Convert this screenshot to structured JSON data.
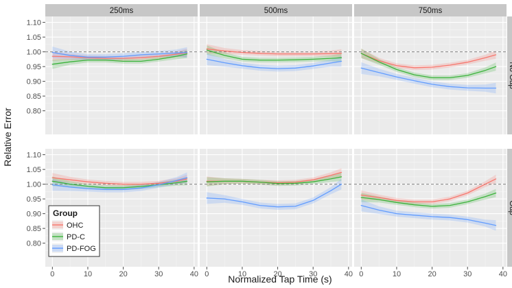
{
  "chart_data": {
    "type": "line",
    "xlabel": "Normalized Tap Time (s)",
    "ylabel": "Relative Error",
    "xlim": [
      -2,
      41
    ],
    "ylim": [
      0.72,
      1.12
    ],
    "x_ticks": [
      0,
      10,
      20,
      30,
      40
    ],
    "y_ticks": [
      0.8,
      0.85,
      0.9,
      0.95,
      1.0,
      1.05,
      1.1
    ],
    "y_tick_labels": [
      "0.80",
      "0.85",
      "0.90",
      "0.95",
      "1.00",
      "1.05",
      "1.10"
    ],
    "reference_line": 1.0,
    "columns": [
      "250ms",
      "500ms",
      "750ms"
    ],
    "rows": [
      "No Gap",
      "Gap"
    ],
    "legend": {
      "title": "Group",
      "position": "bottom-left",
      "entries": [
        {
          "name": "OHC",
          "color": "#f8766d"
        },
        {
          "name": "PD-C",
          "color": "#3bb33b"
        },
        {
          "name": "PD-FOG",
          "color": "#619cff"
        }
      ]
    },
    "x": [
      0,
      5,
      10,
      15,
      20,
      25,
      30,
      35,
      38
    ],
    "panels": [
      {
        "row": "No Gap",
        "column": "250ms",
        "series": [
          {
            "name": "OHC",
            "values": [
              0.985,
              0.983,
              0.98,
              0.978,
              0.978,
              0.98,
              0.985,
              0.992,
              0.997
            ],
            "ci": [
              0.016,
              0.01,
              0.008,
              0.008,
              0.008,
              0.008,
              0.008,
              0.01,
              0.014
            ]
          },
          {
            "name": "PD-C",
            "values": [
              0.958,
              0.966,
              0.972,
              0.972,
              0.968,
              0.968,
              0.975,
              0.985,
              0.993
            ],
            "ci": [
              0.016,
              0.01,
              0.008,
              0.008,
              0.008,
              0.008,
              0.008,
              0.01,
              0.014
            ]
          },
          {
            "name": "PD-FOG",
            "values": [
              0.998,
              0.988,
              0.982,
              0.982,
              0.985,
              0.99,
              0.993,
              0.996,
              0.998
            ],
            "ci": [
              0.02,
              0.013,
              0.01,
              0.01,
              0.01,
              0.01,
              0.01,
              0.012,
              0.018
            ]
          }
        ]
      },
      {
        "row": "No Gap",
        "column": "500ms",
        "series": [
          {
            "name": "OHC",
            "values": [
              1.01,
              1.003,
              0.998,
              0.995,
              0.993,
              0.993,
              0.993,
              0.994,
              0.995
            ],
            "ci": [
              0.016,
              0.01,
              0.008,
              0.008,
              0.008,
              0.008,
              0.008,
              0.01,
              0.014
            ]
          },
          {
            "name": "PD-C",
            "values": [
              1.006,
              0.988,
              0.975,
              0.972,
              0.972,
              0.973,
              0.975,
              0.978,
              0.98
            ],
            "ci": [
              0.016,
              0.01,
              0.008,
              0.008,
              0.008,
              0.008,
              0.008,
              0.01,
              0.014
            ]
          },
          {
            "name": "PD-FOG",
            "values": [
              0.975,
              0.963,
              0.953,
              0.946,
              0.943,
              0.945,
              0.952,
              0.962,
              0.968
            ],
            "ci": [
              0.02,
              0.013,
              0.01,
              0.01,
              0.01,
              0.01,
              0.01,
              0.012,
              0.018
            ]
          }
        ]
      },
      {
        "row": "No Gap",
        "column": "750ms",
        "series": [
          {
            "name": "OHC",
            "values": [
              0.995,
              0.97,
              0.953,
              0.946,
              0.948,
              0.955,
              0.965,
              0.98,
              0.99
            ],
            "ci": [
              0.016,
              0.01,
              0.008,
              0.008,
              0.008,
              0.008,
              0.008,
              0.01,
              0.014
            ]
          },
          {
            "name": "PD-C",
            "values": [
              0.995,
              0.966,
              0.94,
              0.922,
              0.912,
              0.912,
              0.92,
              0.937,
              0.95
            ],
            "ci": [
              0.016,
              0.01,
              0.008,
              0.008,
              0.008,
              0.008,
              0.008,
              0.01,
              0.014
            ]
          },
          {
            "name": "PD-FOG",
            "values": [
              0.945,
              0.93,
              0.915,
              0.902,
              0.89,
              0.882,
              0.878,
              0.877,
              0.877
            ],
            "ci": [
              0.02,
              0.013,
              0.01,
              0.01,
              0.01,
              0.01,
              0.01,
              0.012,
              0.018
            ]
          }
        ]
      },
      {
        "row": "Gap",
        "column": "250ms",
        "series": [
          {
            "name": "OHC",
            "values": [
              1.022,
              1.015,
              1.008,
              1.003,
              1.0,
              1.0,
              1.003,
              1.01,
              1.018
            ],
            "ci": [
              0.016,
              0.01,
              0.008,
              0.008,
              0.008,
              0.008,
              0.008,
              0.01,
              0.014
            ]
          },
          {
            "name": "PD-C",
            "values": [
              1.01,
              1.0,
              0.993,
              0.988,
              0.988,
              0.992,
              0.998,
              1.005,
              1.01
            ],
            "ci": [
              0.016,
              0.01,
              0.008,
              0.008,
              0.008,
              0.008,
              0.008,
              0.01,
              0.014
            ]
          },
          {
            "name": "PD-FOG",
            "values": [
              0.998,
              0.99,
              0.985,
              0.982,
              0.982,
              0.987,
              0.998,
              1.012,
              1.022
            ],
            "ci": [
              0.02,
              0.013,
              0.01,
              0.01,
              0.01,
              0.01,
              0.01,
              0.012,
              0.018
            ]
          }
        ]
      },
      {
        "row": "Gap",
        "column": "500ms",
        "series": [
          {
            "name": "OHC",
            "values": [
              1.01,
              1.01,
              1.01,
              1.007,
              1.005,
              1.007,
              1.015,
              1.03,
              1.04
            ],
            "ci": [
              0.016,
              0.01,
              0.008,
              0.008,
              0.008,
              0.008,
              0.008,
              0.01,
              0.014
            ]
          },
          {
            "name": "PD-C",
            "values": [
              1.008,
              1.01,
              1.01,
              1.007,
              1.002,
              1.003,
              1.008,
              1.018,
              1.025
            ],
            "ci": [
              0.016,
              0.01,
              0.008,
              0.008,
              0.008,
              0.008,
              0.008,
              0.01,
              0.014
            ]
          },
          {
            "name": "PD-FOG",
            "values": [
              0.953,
              0.95,
              0.94,
              0.928,
              0.923,
              0.925,
              0.945,
              0.978,
              1.0
            ],
            "ci": [
              0.02,
              0.013,
              0.01,
              0.01,
              0.01,
              0.01,
              0.01,
              0.012,
              0.018
            ]
          }
        ]
      },
      {
        "row": "Gap",
        "column": "750ms",
        "series": [
          {
            "name": "OHC",
            "values": [
              0.963,
              0.955,
              0.945,
              0.94,
              0.94,
              0.95,
              0.97,
              1.0,
              1.018
            ],
            "ci": [
              0.016,
              0.01,
              0.008,
              0.008,
              0.008,
              0.008,
              0.008,
              0.01,
              0.014
            ]
          },
          {
            "name": "PD-C",
            "values": [
              0.955,
              0.948,
              0.938,
              0.93,
              0.925,
              0.928,
              0.94,
              0.958,
              0.97
            ],
            "ci": [
              0.016,
              0.01,
              0.008,
              0.008,
              0.008,
              0.008,
              0.008,
              0.01,
              0.014
            ]
          },
          {
            "name": "PD-FOG",
            "values": [
              0.928,
              0.912,
              0.9,
              0.895,
              0.89,
              0.887,
              0.88,
              0.868,
              0.86
            ],
            "ci": [
              0.02,
              0.013,
              0.01,
              0.01,
              0.01,
              0.01,
              0.01,
              0.012,
              0.018
            ]
          }
        ]
      }
    ]
  }
}
